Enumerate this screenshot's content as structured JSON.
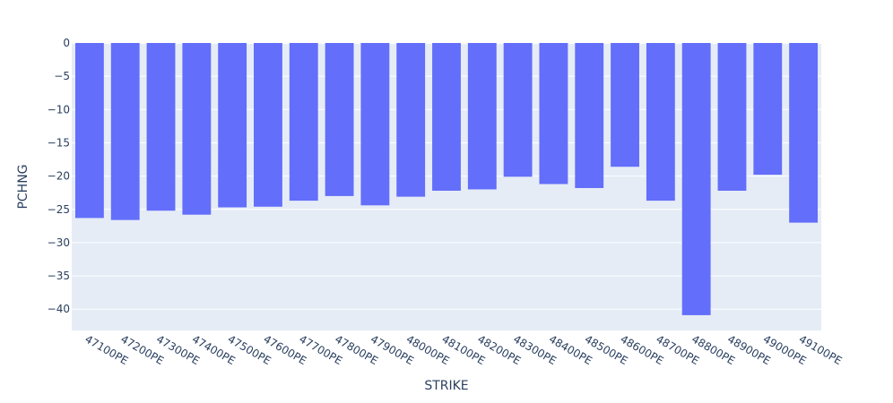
{
  "chart_data": {
    "type": "bar",
    "xlabel": "STRIKE",
    "ylabel": "PCHNG",
    "categories": [
      "47100PE",
      "47200PE",
      "47300PE",
      "47400PE",
      "47500PE",
      "47600PE",
      "47700PE",
      "47800PE",
      "47900PE",
      "48000PE",
      "48100PE",
      "48200PE",
      "48300PE",
      "48400PE",
      "48500PE",
      "48600PE",
      "48700PE",
      "48800PE",
      "48900PE",
      "49000PE",
      "49100PE"
    ],
    "values": [
      -26.3,
      -26.6,
      -25.2,
      -25.8,
      -24.7,
      -24.6,
      -23.7,
      -23.0,
      -24.4,
      -23.1,
      -22.2,
      -22.0,
      -20.1,
      -21.2,
      -21.8,
      -18.6,
      -23.7,
      -40.9,
      -22.2,
      -19.8,
      -27.0
    ],
    "ylim": [
      -43.2,
      0
    ],
    "yticks": [
      0,
      -5,
      -10,
      -15,
      -20,
      -25,
      -30,
      -35,
      -40
    ],
    "ytick_labels": [
      "0",
      "−5",
      "−10",
      "−15",
      "−20",
      "−25",
      "−30",
      "−35",
      "−40"
    ],
    "grid": true,
    "colors": {
      "bar": "#636efa",
      "plot_bg": "#e5ecf6",
      "grid": "#ffffff",
      "text": "#2a3f5f"
    }
  }
}
